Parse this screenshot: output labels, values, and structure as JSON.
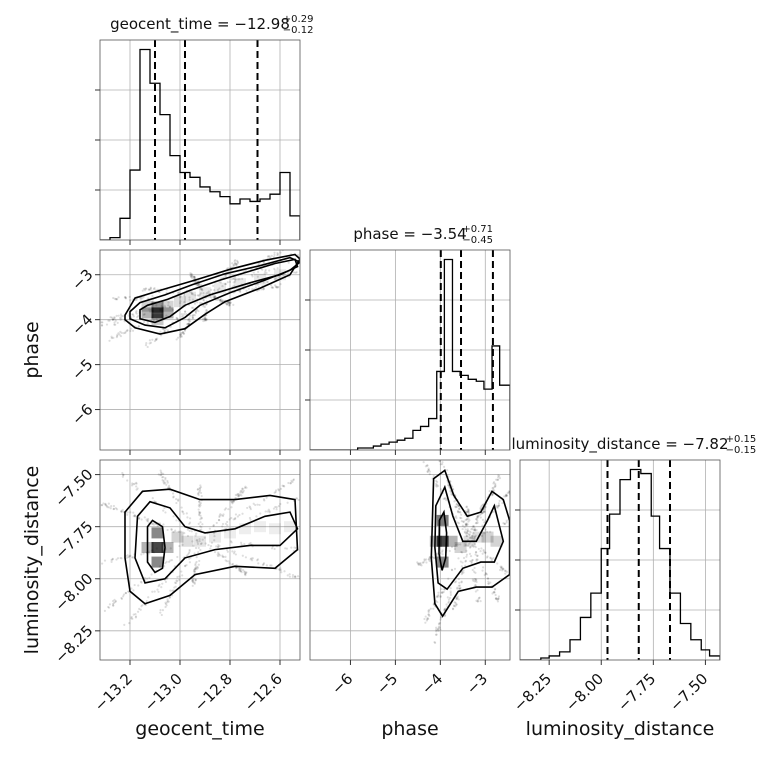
{
  "chart_data": {
    "type": "corner",
    "parameters": [
      {
        "name": "geocent_time",
        "xlabel": "geocent_time",
        "range": [
          -13.32,
          -12.52
        ],
        "ticks": [
          -13.2,
          -13.0,
          -12.8,
          -12.6
        ],
        "tick_labels": [
          "−13.2",
          "−13.0",
          "−12.8",
          "−12.6"
        ],
        "title": {
          "prefix": "geocent_time = −12.98",
          "sup": "+0.29",
          "sub": "−0.12"
        },
        "quantiles": [
          -13.1,
          -12.98,
          -12.69
        ],
        "hist_edges": [
          -13.32,
          -13.28,
          -13.24,
          -13.2,
          -13.16,
          -13.12,
          -13.08,
          -13.04,
          -13.0,
          -12.96,
          -12.92,
          -12.88,
          -12.84,
          -12.8,
          -12.76,
          -12.72,
          -12.68,
          -12.64,
          -12.6,
          -12.56,
          -12.52
        ],
        "hist_values": [
          0.0,
          0.01,
          0.09,
          0.29,
          0.79,
          0.65,
          0.52,
          0.35,
          0.28,
          0.26,
          0.22,
          0.2,
          0.18,
          0.15,
          0.17,
          0.16,
          0.17,
          0.19,
          0.28,
          0.1
        ]
      },
      {
        "name": "phase",
        "xlabel": "phase",
        "ylabel": "phase",
        "range": [
          -6.9,
          -2.45
        ],
        "ticks": [
          -6,
          -5,
          -4,
          -3
        ],
        "tick_labels": [
          "−6",
          "−5",
          "−4",
          "−3"
        ],
        "title": {
          "prefix": "phase = −3.54",
          "sup": "+0.71",
          "sub": "−0.45"
        },
        "quantiles": [
          -3.99,
          -3.54,
          -2.83
        ],
        "hist_edges": [
          -6.9,
          -6.72,
          -6.55,
          -6.37,
          -6.2,
          -6.02,
          -5.84,
          -5.67,
          -5.49,
          -5.32,
          -5.14,
          -4.96,
          -4.79,
          -4.61,
          -4.44,
          -4.26,
          -4.08,
          -3.91,
          -3.73,
          -3.56,
          -3.38,
          -3.2,
          -3.03,
          -2.85,
          -2.68,
          -2.45
        ],
        "hist_values": [
          0.0,
          0.0,
          0.0,
          0.0,
          0.0,
          0.0,
          0.01,
          0.01,
          0.02,
          0.03,
          0.04,
          0.05,
          0.06,
          0.1,
          0.12,
          0.16,
          0.4,
          0.97,
          0.4,
          0.38,
          0.36,
          0.35,
          0.31,
          0.53,
          0.33
        ]
      },
      {
        "name": "luminosity_distance",
        "xlabel": "luminosity_distance",
        "ylabel": "luminosity_distance",
        "range": [
          -8.39,
          -7.43
        ],
        "ticks": [
          -8.25,
          -8.0,
          -7.75,
          -7.5
        ],
        "tick_labels": [
          "−8.25",
          "−8.00",
          "−7.75",
          "−7.50"
        ],
        "title": {
          "prefix": "luminosity_distance = −7.82",
          "sup": "+0.15",
          "sub": "−0.15"
        },
        "quantiles": [
          -7.97,
          -7.82,
          -7.67
        ],
        "hist_edges": [
          -8.39,
          -8.34,
          -8.29,
          -8.25,
          -8.2,
          -8.15,
          -8.1,
          -8.05,
          -8.0,
          -7.96,
          -7.91,
          -7.86,
          -7.81,
          -7.76,
          -7.72,
          -7.67,
          -7.62,
          -7.57,
          -7.52,
          -7.48,
          -7.43
        ],
        "hist_values": [
          0.0,
          0.0,
          0.01,
          0.02,
          0.04,
          0.1,
          0.21,
          0.33,
          0.55,
          0.72,
          0.89,
          0.94,
          0.92,
          0.71,
          0.55,
          0.33,
          0.18,
          0.1,
          0.05,
          0.02
        ]
      }
    ],
    "pairs": [
      {
        "x": "geocent_time",
        "y": "phase",
        "density_cells": [
          [
            -13.09,
            -3.85,
            0.85
          ],
          [
            -13.09,
            -3.72,
            0.5
          ],
          [
            -13.13,
            -3.85,
            0.35
          ],
          [
            -13.05,
            -3.85,
            0.35
          ],
          [
            -13.09,
            -4.0,
            0.25
          ],
          [
            -13.13,
            -3.7,
            0.2
          ],
          [
            -13.05,
            -3.7,
            0.2
          ],
          [
            -13.0,
            -3.6,
            0.15
          ],
          [
            -12.96,
            -3.5,
            0.12
          ],
          [
            -12.9,
            -3.4,
            0.1
          ],
          [
            -12.84,
            -3.3,
            0.1
          ],
          [
            -12.76,
            -3.2,
            0.1
          ],
          [
            -12.68,
            -3.1,
            0.1
          ],
          [
            -12.6,
            -3.0,
            0.1
          ]
        ],
        "contours": [
          [
            [
              -13.16,
              -3.78
            ],
            [
              -13.13,
              -3.68
            ],
            [
              -13.05,
              -3.55
            ],
            [
              -12.96,
              -3.35
            ],
            [
              -12.84,
              -3.12
            ],
            [
              -12.72,
              -2.92
            ],
            [
              -12.62,
              -2.75
            ],
            [
              -12.54,
              -2.66
            ],
            [
              -12.53,
              -2.82
            ],
            [
              -12.6,
              -3.0
            ],
            [
              -12.72,
              -3.18
            ],
            [
              -12.88,
              -3.45
            ],
            [
              -12.98,
              -3.68
            ],
            [
              -13.04,
              -3.93
            ],
            [
              -13.1,
              -4.06
            ],
            [
              -13.16,
              -3.98
            ]
          ],
          [
            [
              -13.2,
              -3.82
            ],
            [
              -13.16,
              -3.62
            ],
            [
              -13.06,
              -3.45
            ],
            [
              -12.95,
              -3.22
            ],
            [
              -12.82,
              -2.98
            ],
            [
              -12.68,
              -2.8
            ],
            [
              -12.56,
              -2.62
            ],
            [
              -12.52,
              -2.72
            ],
            [
              -12.56,
              -2.9
            ],
            [
              -12.66,
              -3.12
            ],
            [
              -12.8,
              -3.4
            ],
            [
              -12.92,
              -3.68
            ],
            [
              -12.98,
              -3.95
            ],
            [
              -13.06,
              -4.18
            ],
            [
              -13.14,
              -4.12
            ],
            [
              -13.2,
              -3.98
            ]
          ],
          [
            [
              -13.22,
              -3.9
            ],
            [
              -13.18,
              -3.52
            ],
            [
              -13.08,
              -3.35
            ],
            [
              -12.94,
              -3.12
            ],
            [
              -12.8,
              -2.88
            ],
            [
              -12.66,
              -2.68
            ],
            [
              -12.54,
              -2.55
            ],
            [
              -12.52,
              -2.65
            ],
            [
              -12.56,
              -3.0
            ],
            [
              -12.68,
              -3.3
            ],
            [
              -12.82,
              -3.6
            ],
            [
              -12.9,
              -3.88
            ],
            [
              -12.98,
              -4.2
            ],
            [
              -13.08,
              -4.32
            ],
            [
              -13.18,
              -4.18
            ],
            [
              -13.22,
              -4.0
            ]
          ]
        ]
      },
      {
        "x": "geocent_time",
        "y": "luminosity_distance",
        "density_cells": [
          [
            -13.09,
            -7.85,
            0.85
          ],
          [
            -13.09,
            -7.78,
            0.55
          ],
          [
            -13.09,
            -7.92,
            0.55
          ],
          [
            -13.13,
            -7.85,
            0.35
          ],
          [
            -13.05,
            -7.85,
            0.35
          ],
          [
            -13.01,
            -7.8,
            0.2
          ],
          [
            -12.97,
            -7.82,
            0.15
          ],
          [
            -12.92,
            -7.82,
            0.12
          ],
          [
            -12.86,
            -7.8,
            0.1
          ],
          [
            -12.8,
            -7.78,
            0.08
          ],
          [
            -12.74,
            -7.76,
            0.08
          ],
          [
            -12.68,
            -7.75,
            0.08
          ],
          [
            -12.62,
            -7.76,
            0.08
          ],
          [
            -12.56,
            -7.75,
            0.08
          ]
        ],
        "contours": [
          [
            [
              -13.13,
              -7.75
            ],
            [
              -13.11,
              -7.72
            ],
            [
              -13.07,
              -7.75
            ],
            [
              -13.06,
              -7.85
            ],
            [
              -13.07,
              -7.95
            ],
            [
              -13.1,
              -7.97
            ],
            [
              -13.13,
              -7.92
            ]
          ],
          [
            [
              -13.17,
              -7.7
            ],
            [
              -13.12,
              -7.63
            ],
            [
              -13.04,
              -7.66
            ],
            [
              -12.98,
              -7.75
            ],
            [
              -12.9,
              -7.78
            ],
            [
              -12.78,
              -7.76
            ],
            [
              -12.66,
              -7.7
            ],
            [
              -12.56,
              -7.68
            ],
            [
              -12.53,
              -7.76
            ],
            [
              -12.6,
              -7.84
            ],
            [
              -12.72,
              -7.84
            ],
            [
              -12.86,
              -7.86
            ],
            [
              -12.98,
              -7.9
            ],
            [
              -13.06,
              -8.0
            ],
            [
              -13.14,
              -8.02
            ],
            [
              -13.18,
              -7.9
            ]
          ],
          [
            [
              -13.22,
              -7.68
            ],
            [
              -13.15,
              -7.58
            ],
            [
              -13.04,
              -7.57
            ],
            [
              -12.92,
              -7.62
            ],
            [
              -12.78,
              -7.62
            ],
            [
              -12.64,
              -7.6
            ],
            [
              -12.54,
              -7.62
            ],
            [
              -12.53,
              -7.86
            ],
            [
              -12.62,
              -7.95
            ],
            [
              -12.78,
              -7.94
            ],
            [
              -12.94,
              -7.98
            ],
            [
              -13.04,
              -8.08
            ],
            [
              -13.14,
              -8.12
            ],
            [
              -13.2,
              -8.06
            ],
            [
              -13.22,
              -7.9
            ]
          ]
        ]
      },
      {
        "x": "phase",
        "y": "luminosity_distance",
        "density_cells": [
          [
            -3.95,
            -7.82,
            0.85
          ],
          [
            -3.95,
            -7.72,
            0.6
          ],
          [
            -3.95,
            -7.92,
            0.55
          ],
          [
            -3.75,
            -7.82,
            0.35
          ],
          [
            -4.1,
            -7.82,
            0.35
          ],
          [
            -3.55,
            -7.85,
            0.2
          ],
          [
            -3.35,
            -7.82,
            0.15
          ],
          [
            -3.15,
            -7.8,
            0.15
          ],
          [
            -2.95,
            -7.8,
            0.2
          ],
          [
            -2.75,
            -7.82,
            0.2
          ]
        ],
        "contours": [
          [
            [
              -4.02,
              -7.72
            ],
            [
              -3.92,
              -7.68
            ],
            [
              -3.86,
              -7.78
            ],
            [
              -3.88,
              -7.9
            ],
            [
              -3.96,
              -7.96
            ],
            [
              -4.03,
              -7.88
            ]
          ],
          [
            [
              -4.1,
              -7.65
            ],
            [
              -3.9,
              -7.56
            ],
            [
              -3.72,
              -7.7
            ],
            [
              -3.5,
              -7.82
            ],
            [
              -3.2,
              -7.82
            ],
            [
              -2.95,
              -7.72
            ],
            [
              -2.8,
              -7.65
            ],
            [
              -2.6,
              -7.82
            ],
            [
              -2.8,
              -7.92
            ],
            [
              -3.1,
              -7.92
            ],
            [
              -3.5,
              -7.95
            ],
            [
              -3.85,
              -8.05
            ],
            [
              -4.05,
              -8.02
            ],
            [
              -4.12,
              -7.85
            ]
          ],
          [
            [
              -4.15,
              -7.52
            ],
            [
              -3.9,
              -7.48
            ],
            [
              -3.7,
              -7.6
            ],
            [
              -3.4,
              -7.7
            ],
            [
              -3.1,
              -7.68
            ],
            [
              -2.85,
              -7.58
            ],
            [
              -2.6,
              -7.62
            ],
            [
              -2.46,
              -7.72
            ],
            [
              -2.46,
              -7.98
            ],
            [
              -2.85,
              -8.04
            ],
            [
              -3.2,
              -8.04
            ],
            [
              -3.6,
              -8.06
            ],
            [
              -3.95,
              -8.18
            ],
            [
              -4.12,
              -8.12
            ],
            [
              -4.2,
              -7.9
            ]
          ]
        ]
      }
    ],
    "grid": true,
    "contour_levels": 3
  }
}
